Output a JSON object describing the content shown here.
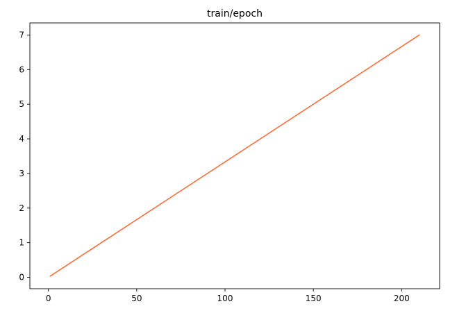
{
  "chart_data": {
    "type": "line",
    "title": "train/epoch",
    "xlabel": "",
    "ylabel": "",
    "xlim": [
      -10.5,
      221.5
    ],
    "ylim": [
      -0.33,
      7.35
    ],
    "xticks": [
      0,
      50,
      100,
      150,
      200
    ],
    "yticks": [
      0,
      1,
      2,
      3,
      4,
      5,
      6,
      7
    ],
    "xtick_labels": [
      "0",
      "50",
      "100",
      "150",
      "200"
    ],
    "ytick_labels": [
      "0",
      "1",
      "2",
      "3",
      "4",
      "5",
      "6",
      "7"
    ],
    "grid": false,
    "legend": "none",
    "series": [
      {
        "color": "#f2703c",
        "x": [
          1,
          210
        ],
        "y": [
          0.033,
          7.0
        ]
      }
    ]
  }
}
